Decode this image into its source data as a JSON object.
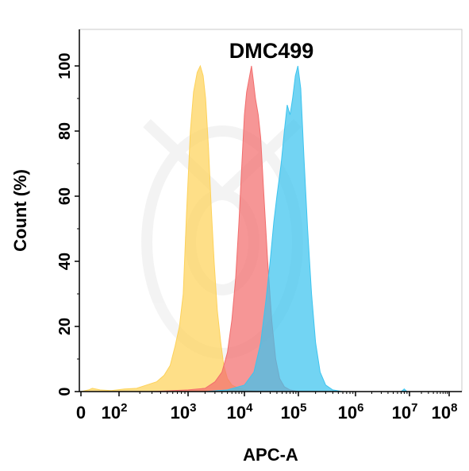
{
  "chart_data": {
    "type": "area",
    "title": "DMC499",
    "xlabel": "APC-A",
    "ylabel": "Count  (%)",
    "x_scale": "biexponential",
    "xlim": [
      0,
      100000000
    ],
    "ylim": [
      0,
      110
    ],
    "x_ticks": [
      {
        "value": 0,
        "base": "0",
        "exp": ""
      },
      {
        "value": 100,
        "base": "10",
        "exp": "2"
      },
      {
        "value": 1000,
        "base": "10",
        "exp": "3"
      },
      {
        "value": 10000,
        "base": "10",
        "exp": "4"
      },
      {
        "value": 100000,
        "base": "10",
        "exp": "5"
      },
      {
        "value": 1000000,
        "base": "10",
        "exp": "6"
      },
      {
        "value": 10000000,
        "base": "10",
        "exp": "7"
      },
      {
        "value": 100000000,
        "base": "10",
        "exp": "8"
      }
    ],
    "y_ticks": [
      0,
      20,
      40,
      60,
      80,
      100
    ],
    "grid": false,
    "series": [
      {
        "color": "#fdd25a",
        "points": [
          [
            0,
            0
          ],
          [
            20,
            0.5
          ],
          [
            30,
            1
          ],
          [
            50,
            0.5
          ],
          [
            80,
            0.3
          ],
          [
            120,
            0.8
          ],
          [
            180,
            1
          ],
          [
            250,
            2
          ],
          [
            350,
            3
          ],
          [
            450,
            5
          ],
          [
            550,
            8
          ],
          [
            650,
            14
          ],
          [
            750,
            20
          ],
          [
            850,
            30
          ],
          [
            950,
            55
          ],
          [
            1100,
            80
          ],
          [
            1250,
            92
          ],
          [
            1450,
            98
          ],
          [
            1650,
            100
          ],
          [
            1850,
            97
          ],
          [
            2050,
            90
          ],
          [
            2300,
            75
          ],
          [
            2600,
            55
          ],
          [
            2900,
            40
          ],
          [
            3300,
            25
          ],
          [
            3800,
            15
          ],
          [
            4300,
            8
          ],
          [
            5000,
            4
          ],
          [
            6000,
            2
          ],
          [
            8000,
            1
          ],
          [
            12000,
            0.3
          ],
          [
            20000,
            0
          ]
        ]
      },
      {
        "color": "#f26d6d",
        "points": [
          [
            300,
            0
          ],
          [
            1000,
            0.5
          ],
          [
            2000,
            1
          ],
          [
            3000,
            3
          ],
          [
            4000,
            6
          ],
          [
            5000,
            12
          ],
          [
            6000,
            22
          ],
          [
            7000,
            35
          ],
          [
            8000,
            52
          ],
          [
            9000,
            70
          ],
          [
            10000,
            85
          ],
          [
            11000,
            92
          ],
          [
            12500,
            97
          ],
          [
            13500,
            100
          ],
          [
            14500,
            96
          ],
          [
            16000,
            90
          ],
          [
            18000,
            85
          ],
          [
            20000,
            78
          ],
          [
            23000,
            60
          ],
          [
            27000,
            40
          ],
          [
            32000,
            22
          ],
          [
            38000,
            10
          ],
          [
            45000,
            4
          ],
          [
            55000,
            1.5
          ],
          [
            70000,
            0.5
          ],
          [
            100000,
            0
          ]
        ]
      },
      {
        "color": "#3cc4ef",
        "points": [
          [
            2000,
            0
          ],
          [
            5000,
            0.5
          ],
          [
            10000,
            2
          ],
          [
            15000,
            6
          ],
          [
            20000,
            15
          ],
          [
            25000,
            28
          ],
          [
            30000,
            40
          ],
          [
            35000,
            52
          ],
          [
            40000,
            60
          ],
          [
            48000,
            70
          ],
          [
            55000,
            80
          ],
          [
            62000,
            88
          ],
          [
            70000,
            85
          ],
          [
            78000,
            90
          ],
          [
            88000,
            97
          ],
          [
            98000,
            100
          ],
          [
            110000,
            93
          ],
          [
            125000,
            72
          ],
          [
            145000,
            50
          ],
          [
            170000,
            30
          ],
          [
            200000,
            15
          ],
          [
            240000,
            6
          ],
          [
            300000,
            2
          ],
          [
            400000,
            0.5
          ],
          [
            600000,
            0
          ],
          [
            7000000,
            0
          ],
          [
            8000000,
            0.8
          ],
          [
            9000000,
            0
          ]
        ]
      }
    ]
  }
}
